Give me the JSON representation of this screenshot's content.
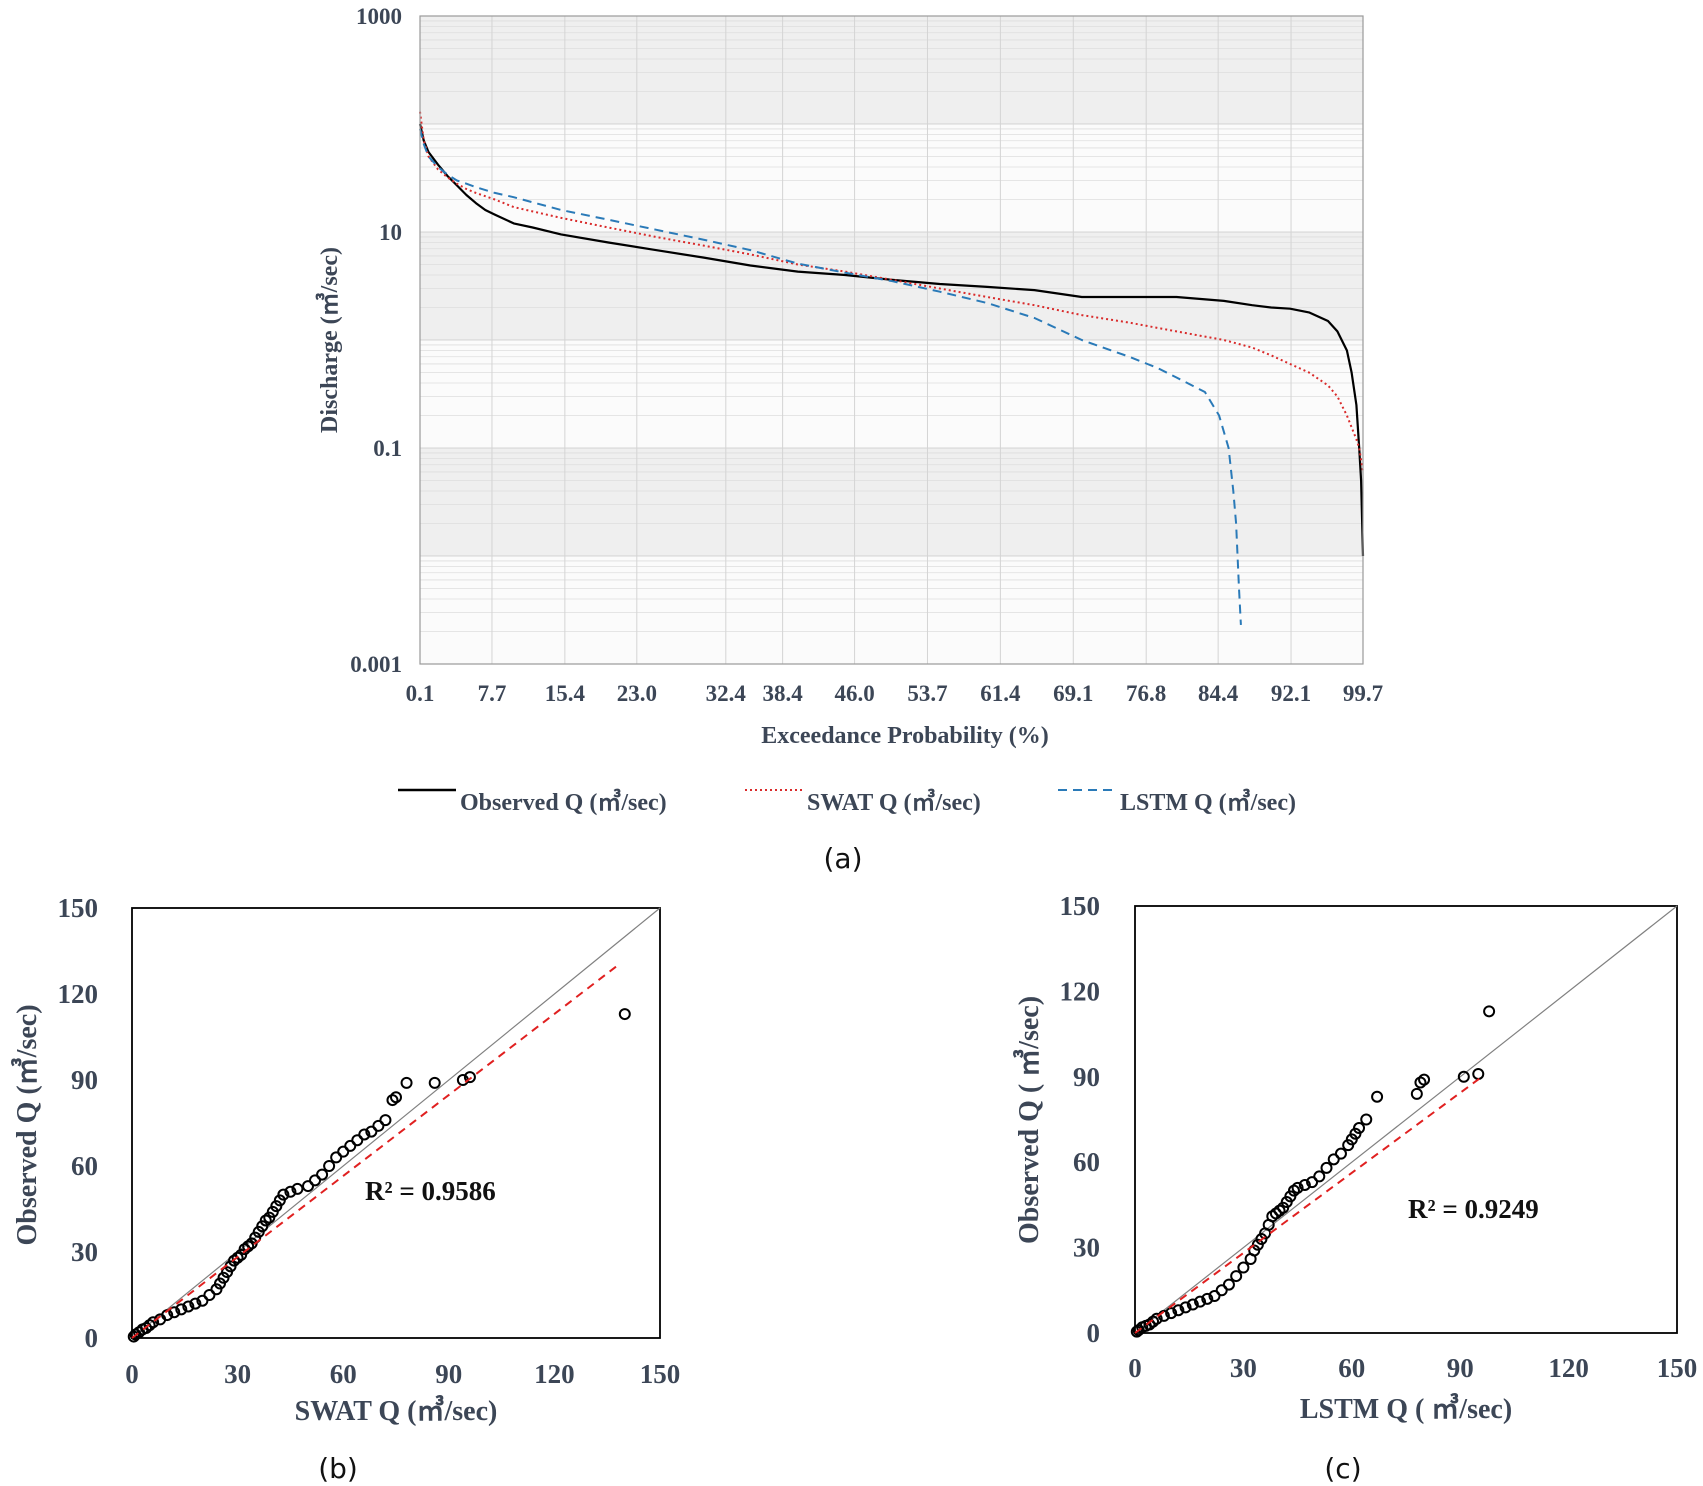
{
  "chart_data": [
    {
      "panel": "(a)",
      "type": "line",
      "title": "",
      "xlabel": "Exceedance Probability (%)",
      "ylabel": "Discharge (㎥/sec)",
      "yscale": "log",
      "ylim": [
        0.001,
        1000
      ],
      "xlim": [
        0.1,
        99.7
      ],
      "yticks": [
        "1000",
        "10",
        "0.1",
        "0.001"
      ],
      "xticks": [
        "0.1",
        "7.7",
        "15.4",
        "23.0",
        "32.4",
        "38.4",
        "46.0",
        "53.7",
        "61.4",
        "69.1",
        "76.8",
        "84.4",
        "92.1",
        "99.7"
      ],
      "grid": true,
      "legend_position": "bottom",
      "series": [
        {
          "name": "Observed Q (㎥/sec)",
          "color": "#000000",
          "style": "solid",
          "x": [
            0.1,
            0.5,
            1,
            2,
            3,
            4,
            5,
            6,
            7,
            8,
            10,
            12,
            15,
            20,
            25,
            30,
            35,
            40,
            45,
            50,
            55,
            60,
            65,
            70,
            75,
            80,
            85,
            88,
            90,
            92,
            94,
            96,
            97,
            98,
            98.5,
            99,
            99.3,
            99.5,
            99.7
          ],
          "y": [
            100,
            70,
            55,
            42,
            33,
            27,
            22,
            18.5,
            16,
            14.5,
            12,
            11,
            9.5,
            8,
            6.8,
            5.8,
            4.9,
            4.3,
            4.0,
            3.6,
            3.3,
            3.1,
            2.9,
            2.5,
            2.5,
            2.5,
            2.3,
            2.1,
            2.0,
            1.95,
            1.8,
            1.5,
            1.2,
            0.8,
            0.5,
            0.25,
            0.1,
            0.05,
            0.01
          ]
        },
        {
          "name": "SWAT Q (㎥/sec)",
          "color": "#d92b2b",
          "style": "dotted",
          "x": [
            0.1,
            0.5,
            1,
            2,
            3,
            4,
            5,
            6,
            8,
            10,
            15,
            20,
            25,
            30,
            35,
            40,
            45,
            50,
            55,
            60,
            65,
            70,
            75,
            80,
            85,
            88,
            90,
            92,
            94,
            96,
            97,
            98,
            99,
            99.3,
            99.7
          ],
          "y": [
            130,
            70,
            50,
            38,
            32,
            28,
            25,
            23,
            20,
            17,
            13.5,
            11,
            9,
            7.5,
            6.2,
            5.0,
            4.3,
            3.6,
            3.0,
            2.5,
            2.1,
            1.7,
            1.45,
            1.2,
            1.0,
            0.85,
            0.72,
            0.6,
            0.5,
            0.38,
            0.3,
            0.2,
            0.12,
            0.1,
            0.06
          ]
        },
        {
          "name": "LSTM Q (㎥/sec)",
          "color": "#2a7ab8",
          "style": "dashed",
          "x": [
            0.1,
            0.5,
            1,
            2,
            3,
            4,
            5,
            6,
            8,
            10,
            15,
            20,
            25,
            30,
            35,
            40,
            45,
            50,
            55,
            60,
            65,
            70,
            75,
            78,
            80,
            83,
            84.5,
            85.5,
            86,
            86.3,
            86.6,
            86.8
          ],
          "y": [
            90,
            65,
            50,
            40,
            34,
            30,
            28,
            26,
            23,
            21,
            16,
            13,
            10.5,
            8.5,
            6.8,
            5.1,
            4.2,
            3.5,
            2.8,
            2.2,
            1.6,
            1.0,
            0.7,
            0.55,
            0.45,
            0.33,
            0.2,
            0.1,
            0.04,
            0.02,
            0.005,
            0.0023
          ]
        }
      ]
    },
    {
      "panel": "(b)",
      "type": "scatter",
      "title": "",
      "xlabel": "SWAT Q (㎥/sec)",
      "ylabel": "Observed Q (㎥/sec)",
      "xlim": [
        0,
        150
      ],
      "ylim": [
        0,
        150
      ],
      "xticks": [
        "0",
        "30",
        "60",
        "90",
        "120",
        "150"
      ],
      "yticks": [
        "0",
        "30",
        "60",
        "90",
        "120",
        "150"
      ],
      "annotation": "R² = 0.9586",
      "points": [
        [
          0.5,
          0.5
        ],
        [
          1,
          1.2
        ],
        [
          2,
          2
        ],
        [
          3,
          3
        ],
        [
          4,
          3.5
        ],
        [
          5,
          4.5
        ],
        [
          6,
          5.5
        ],
        [
          8,
          6.5
        ],
        [
          10,
          8
        ],
        [
          12,
          9
        ],
        [
          14,
          10
        ],
        [
          16,
          11
        ],
        [
          18,
          12
        ],
        [
          20,
          13
        ],
        [
          22,
          15
        ],
        [
          24,
          17
        ],
        [
          25,
          19
        ],
        [
          26,
          21
        ],
        [
          27,
          23
        ],
        [
          28,
          25
        ],
        [
          29,
          27
        ],
        [
          30,
          28
        ],
        [
          31,
          29
        ],
        [
          32,
          31
        ],
        [
          33,
          32
        ],
        [
          34,
          33
        ],
        [
          35,
          35
        ],
        [
          36,
          37
        ],
        [
          37,
          39
        ],
        [
          38,
          41
        ],
        [
          39,
          42
        ],
        [
          40,
          44
        ],
        [
          41,
          46
        ],
        [
          42,
          48
        ],
        [
          43,
          50
        ],
        [
          45,
          51
        ],
        [
          47,
          52
        ],
        [
          50,
          53
        ],
        [
          52,
          55
        ],
        [
          54,
          57
        ],
        [
          56,
          60
        ],
        [
          58,
          63
        ],
        [
          60,
          65
        ],
        [
          62,
          67
        ],
        [
          64,
          69
        ],
        [
          66,
          71
        ],
        [
          68,
          72
        ],
        [
          70,
          74
        ],
        [
          72,
          76
        ],
        [
          74,
          83
        ],
        [
          75,
          84
        ],
        [
          78,
          89
        ],
        [
          86,
          89
        ],
        [
          94,
          90
        ],
        [
          96,
          91
        ],
        [
          140,
          113
        ]
      ],
      "trend": {
        "color": "#e02020",
        "style": "dashed",
        "x": [
          0,
          138
        ],
        "y": [
          0,
          130
        ]
      },
      "reference": {
        "color": "#808080",
        "style": "solid",
        "x": [
          0,
          150
        ],
        "y": [
          0,
          150
        ]
      }
    },
    {
      "panel": "(c)",
      "type": "scatter",
      "title": "",
      "xlabel": "LSTM Q ( ㎥/sec)",
      "ylabel": "Observed Q ( ㎥/sec)",
      "xlim": [
        0,
        150
      ],
      "ylim": [
        0,
        150
      ],
      "xticks": [
        "0",
        "30",
        "60",
        "90",
        "120",
        "150"
      ],
      "yticks": [
        "0",
        "30",
        "60",
        "90",
        "120",
        "150"
      ],
      "annotation": "R² = 0.9249",
      "points": [
        [
          0.5,
          0.5
        ],
        [
          1,
          1
        ],
        [
          2,
          2
        ],
        [
          3,
          2.5
        ],
        [
          4,
          3
        ],
        [
          5,
          4
        ],
        [
          6,
          5
        ],
        [
          8,
          6
        ],
        [
          10,
          7
        ],
        [
          12,
          8
        ],
        [
          14,
          9
        ],
        [
          16,
          10
        ],
        [
          18,
          11
        ],
        [
          20,
          12
        ],
        [
          22,
          13
        ],
        [
          24,
          15
        ],
        [
          26,
          17
        ],
        [
          28,
          20
        ],
        [
          30,
          23
        ],
        [
          32,
          26
        ],
        [
          33,
          29
        ],
        [
          34,
          31
        ],
        [
          35,
          33
        ],
        [
          36,
          35
        ],
        [
          37,
          38
        ],
        [
          38,
          41
        ],
        [
          39,
          42
        ],
        [
          40,
          43
        ],
        [
          41,
          44
        ],
        [
          42,
          46
        ],
        [
          43,
          48
        ],
        [
          44,
          50
        ],
        [
          45,
          51
        ],
        [
          47,
          52
        ],
        [
          49,
          53
        ],
        [
          51,
          55
        ],
        [
          53,
          58
        ],
        [
          55,
          61
        ],
        [
          57,
          63
        ],
        [
          59,
          66
        ],
        [
          60,
          68
        ],
        [
          61,
          70
        ],
        [
          62,
          72
        ],
        [
          64,
          75
        ],
        [
          67,
          83
        ],
        [
          78,
          84
        ],
        [
          79,
          88
        ],
        [
          80,
          89
        ],
        [
          91,
          90
        ],
        [
          95,
          91
        ],
        [
          98,
          113
        ]
      ],
      "trend": {
        "color": "#e02020",
        "style": "dashed",
        "x": [
          0,
          96
        ],
        "y": [
          0,
          90
        ]
      },
      "reference": {
        "color": "#808080",
        "style": "solid",
        "x": [
          0,
          150
        ],
        "y": [
          0,
          150
        ]
      }
    }
  ],
  "panel_labels": {
    "a": "(a)",
    "b": "(b)",
    "c": "(c)"
  }
}
